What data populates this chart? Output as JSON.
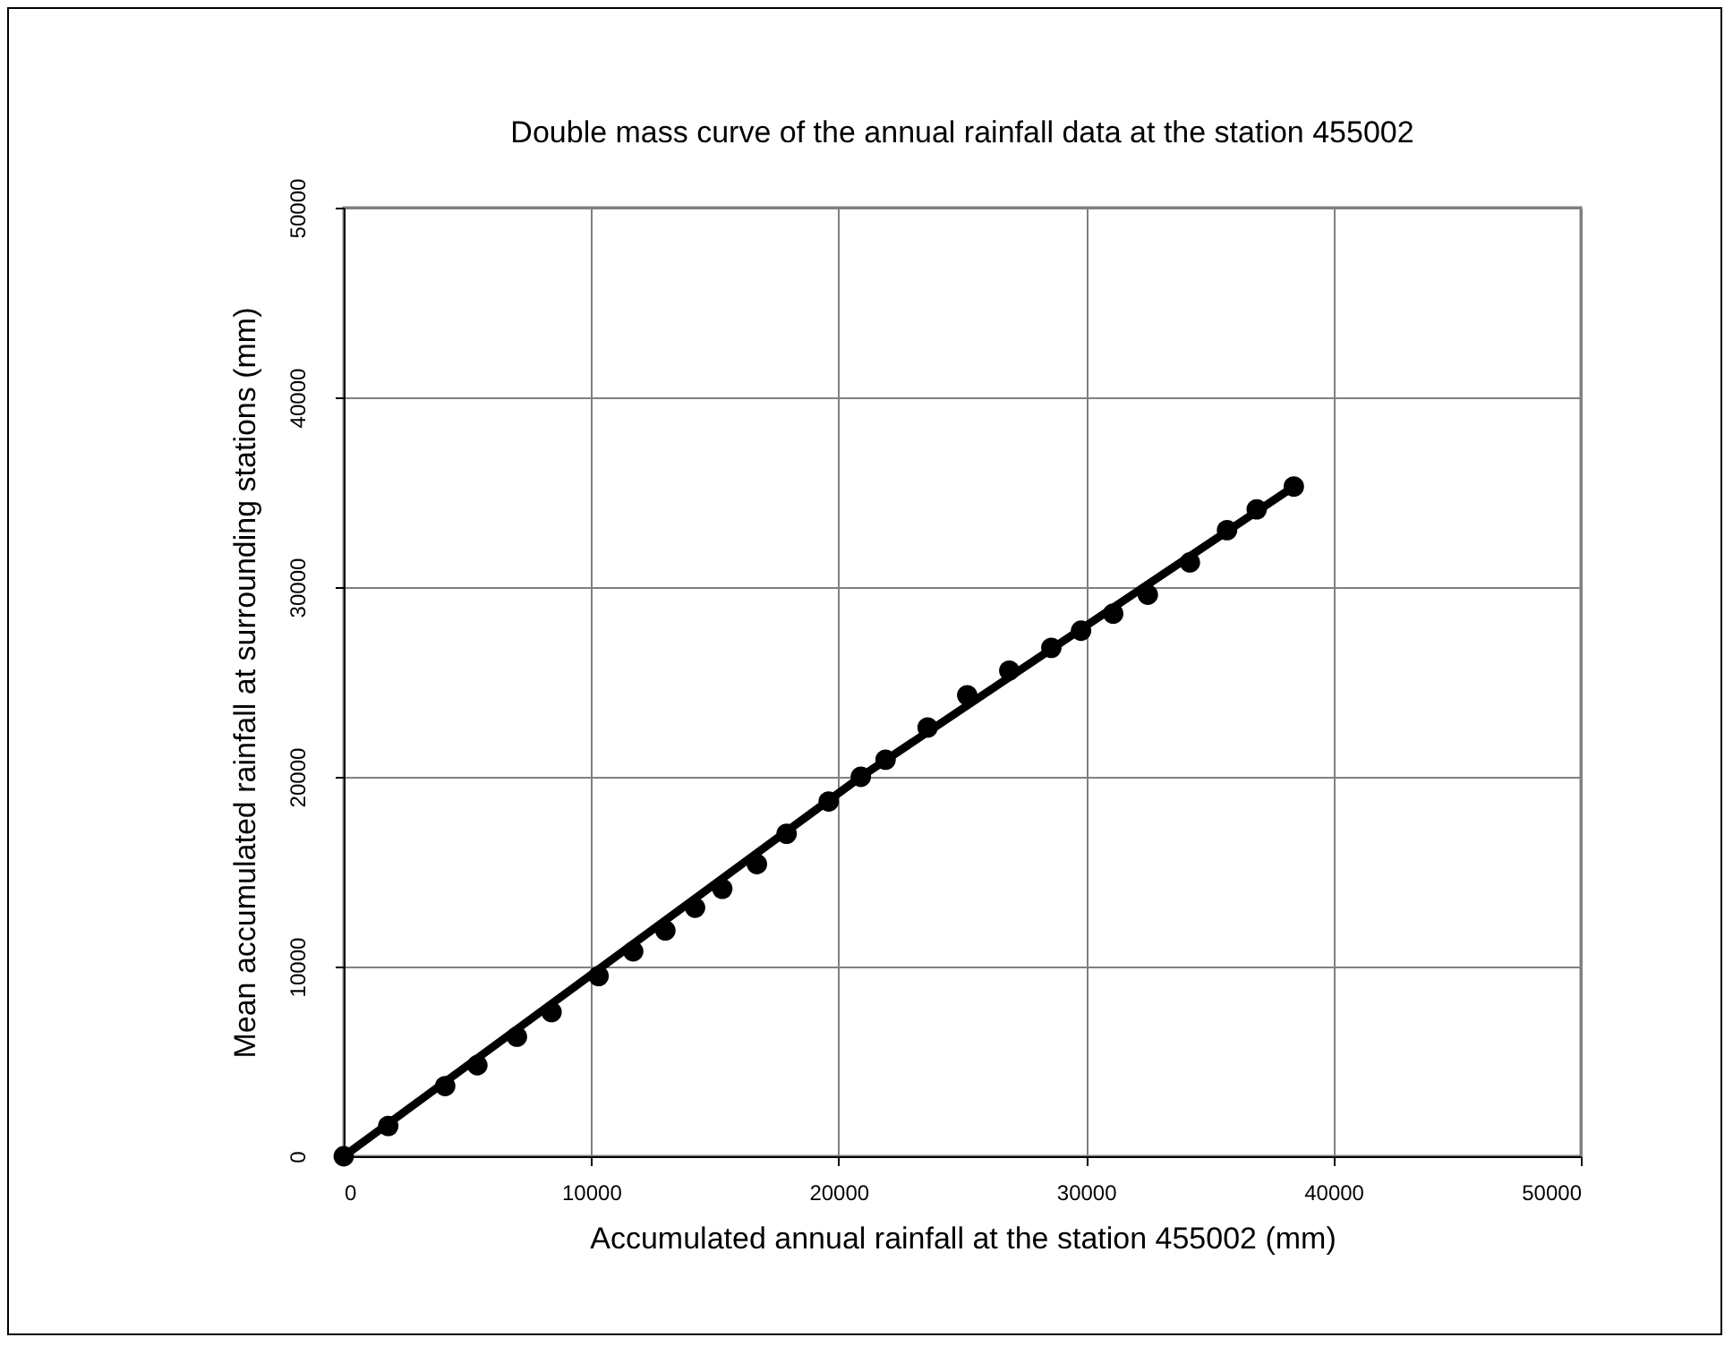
{
  "chart_data": {
    "type": "scatter",
    "title": "Double mass curve of the annual rainfall data at the station 455002",
    "xlabel": "Accumulated annual rainfall at the station 455002 (mm)",
    "ylabel": "Mean accumulated rainfall at surrounding stations (mm)",
    "xlim": [
      0,
      50000
    ],
    "ylim": [
      0,
      50000
    ],
    "xticks": [
      0,
      10000,
      20000,
      30000,
      40000,
      50000
    ],
    "yticks": [
      0,
      10000,
      20000,
      30000,
      40000,
      50000
    ],
    "grid": true,
    "marker": "circle",
    "series": [
      {
        "color": "#000000",
        "x": [
          0,
          1800,
          4100,
          5400,
          7000,
          8400,
          10300,
          11700,
          13000,
          14200,
          15300,
          16700,
          17900,
          19600,
          20900,
          21900,
          23600,
          25200,
          26900,
          28600,
          29800,
          31100,
          32500,
          34200,
          35700,
          36900,
          38400
        ],
        "values": [
          0,
          1600,
          3700,
          4800,
          6300,
          7600,
          9500,
          10800,
          11900,
          13100,
          14100,
          15400,
          17000,
          18700,
          20000,
          20900,
          22600,
          24300,
          25600,
          26800,
          27700,
          28600,
          29600,
          31300,
          33000,
          34100,
          35300
        ]
      },
      {
        "type": "line",
        "color": "#000000",
        "line_style": "solid",
        "marker": "none",
        "x": [
          0,
          20900,
          38400
        ],
        "values": [
          0,
          20000,
          35300
        ]
      }
    ]
  }
}
